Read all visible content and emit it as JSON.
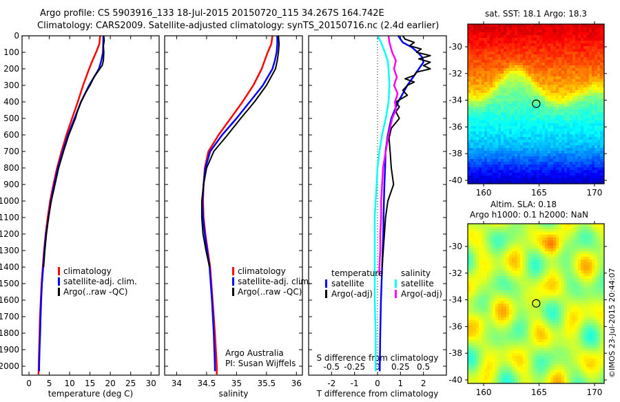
{
  "title_line1": "Argo profile: CS 5903916_133 18-Jul-2015 20150720_115 34.267S 164.742E",
  "title_line2": "Climatology: CARS2009. Satellite-adjusted climatology: synTS_20150716.nc (2.4d earlier)",
  "credit": "©IMOS 23-Jul-2015 20:44:07",
  "colors": {
    "climatology": "#ff0000",
    "satellite": "#0000ff",
    "argo": "#000000",
    "s_satellite": "#00ffff",
    "s_argo": "#ff00ff"
  },
  "chart_data": [
    {
      "type": "line",
      "id": "temperature",
      "xlabel": "temperature (deg C)",
      "ylabel": "depth",
      "xlim": [
        -1.7,
        32
      ],
      "ylim": [
        2054,
        0
      ],
      "xticks": [
        0,
        5,
        10,
        15,
        20,
        25,
        30
      ],
      "xtick_labels": [
        "0",
        "5",
        "10",
        "15",
        "20",
        "25",
        "30"
      ],
      "yticks": [
        0,
        100,
        200,
        300,
        400,
        500,
        600,
        700,
        800,
        900,
        1000,
        1100,
        1200,
        1300,
        1400,
        1500,
        1600,
        1700,
        1800,
        1900,
        2000
      ],
      "ytick_labels": [
        "0",
        "100",
        "200",
        "300",
        "400",
        "500",
        "600",
        "700",
        "800",
        "900",
        "1000",
        "1100",
        "1200",
        "1300",
        "1400",
        "1500",
        "1600",
        "1700",
        "1800",
        "1900",
        "2000"
      ],
      "legend": [
        "climatology",
        "satellite-adj. clim.",
        "Argo(..raw -QC)"
      ],
      "legend_position": "lower-center",
      "series": [
        {
          "name": "climatology",
          "color": "#ff0000",
          "depth": [
            0,
            50,
            100,
            150,
            200,
            300,
            400,
            500,
            600,
            700,
            800,
            900,
            1000,
            1100,
            1200,
            1300,
            1400,
            1500,
            1600,
            1700,
            1800,
            1900,
            2000,
            2050
          ],
          "values": [
            17.5,
            17.3,
            16.5,
            15.6,
            14.8,
            13.3,
            12.0,
            10.6,
            9.2,
            8.0,
            6.9,
            6.0,
            5.2,
            4.6,
            4.1,
            3.7,
            3.4,
            3.1,
            2.9,
            2.7,
            2.6,
            2.5,
            2.4,
            2.35
          ]
        },
        {
          "name": "satellite-adj. clim.",
          "color": "#0000ff",
          "depth": [
            0,
            100,
            150,
            200,
            300,
            400,
            500,
            600,
            700,
            800,
            900,
            1000,
            1100,
            1200,
            1300,
            1400,
            1500,
            1600,
            1700,
            1800,
            1900,
            2000,
            2030
          ],
          "values": [
            18.3,
            18.2,
            17.8,
            17.2,
            14.8,
            12.8,
            11.2,
            9.6,
            8.3,
            7.1,
            6.2,
            5.4,
            4.8,
            4.2,
            3.8,
            3.5,
            3.2,
            3.0,
            2.85,
            2.75,
            2.6,
            2.5,
            2.5
          ]
        },
        {
          "name": "Argo(..raw -QC)",
          "color": "#000000",
          "depth": [
            0,
            30,
            60,
            100,
            150,
            180,
            200,
            250,
            300,
            350,
            400,
            450,
            500,
            600,
            700,
            800,
            900,
            1000,
            1100,
            1200,
            1300,
            1400
          ],
          "values": [
            18.4,
            18.5,
            18.3,
            18.4,
            18.3,
            18.0,
            17.4,
            16.0,
            15.0,
            13.8,
            12.8,
            12.0,
            11.4,
            9.8,
            8.5,
            7.3,
            6.4,
            5.5,
            4.8,
            4.3,
            3.9,
            3.6
          ]
        }
      ]
    },
    {
      "type": "line",
      "id": "salinity",
      "xlabel": "salinity",
      "xlim": [
        33.8,
        36.1
      ],
      "ylim": [
        2054,
        0
      ],
      "xticks": [
        34,
        34.5,
        35,
        35.5,
        36
      ],
      "xtick_labels": [
        "34",
        "34.5",
        "35",
        "35.5",
        "36"
      ],
      "legend": [
        "climatology",
        "satellite-adj. clim.",
        "Argo(..raw -QC)"
      ],
      "legend_position": "lower-center",
      "annotation": [
        "Argo Australia",
        "PI: Susan Wijffels"
      ],
      "series": [
        {
          "name": "climatology",
          "color": "#ff0000",
          "depth": [
            0,
            50,
            100,
            150,
            200,
            300,
            400,
            500,
            600,
            700,
            800,
            900,
            1000,
            1100,
            1200,
            1300,
            1400,
            1600,
            1800,
            2000,
            2050
          ],
          "values": [
            35.6,
            35.58,
            35.52,
            35.47,
            35.42,
            35.28,
            35.1,
            34.9,
            34.7,
            34.53,
            34.47,
            34.45,
            34.44,
            34.45,
            34.48,
            34.52,
            34.56,
            34.6,
            34.64,
            34.67,
            34.67
          ]
        },
        {
          "name": "satellite-adj. clim.",
          "color": "#0000ff",
          "depth": [
            0,
            50,
            100,
            150,
            200,
            300,
            400,
            500,
            600,
            700,
            800,
            900,
            1000,
            1100,
            1200,
            1300,
            1400,
            1600,
            1800,
            2000,
            2030
          ],
          "values": [
            35.68,
            35.68,
            35.67,
            35.64,
            35.6,
            35.44,
            35.22,
            35.0,
            34.76,
            34.56,
            34.48,
            34.45,
            34.43,
            34.44,
            34.47,
            34.51,
            34.55,
            34.59,
            34.62,
            34.64,
            34.64
          ]
        },
        {
          "name": "Argo(..raw -QC)",
          "color": "#000000",
          "depth": [
            0,
            50,
            100,
            150,
            200,
            300,
            400,
            500,
            600,
            700,
            800,
            900,
            1000,
            1100,
            1200,
            1300,
            1400
          ],
          "values": [
            35.7,
            35.71,
            35.7,
            35.68,
            35.65,
            35.5,
            35.3,
            35.07,
            34.85,
            34.62,
            34.5,
            34.45,
            34.42,
            34.42,
            34.44,
            34.49,
            34.55
          ]
        }
      ]
    },
    {
      "type": "line",
      "id": "differences",
      "xlabel": "T difference from climatology",
      "xlabel2": "S difference from climatology",
      "xlim": [
        -3,
        3
      ],
      "x2lim": [
        -0.75,
        0.75
      ],
      "ylim": [
        2054,
        0
      ],
      "xticks": [
        -2,
        -1,
        0,
        1,
        2
      ],
      "xtick_labels": [
        "-2",
        "-1",
        "0",
        "1",
        "2"
      ],
      "x2ticks": [
        -0.5,
        -0.25,
        0,
        0.25,
        0.5
      ],
      "x2tick_labels": [
        "-0.5",
        "-0.25",
        "0",
        "0.25",
        "0.5"
      ],
      "legend_temperature_title": "temperature",
      "legend_temperature": [
        "satellite",
        "Argo(-adj)"
      ],
      "legend_salinity_title": "salinity",
      "legend_salinity": [
        "satellite",
        "Argo(-adj)"
      ],
      "series": [
        {
          "name": "T satellite",
          "axis": "T",
          "color": "#0000ff",
          "depth": [
            0,
            40,
            70,
            100,
            130,
            160,
            200,
            250,
            300,
            350,
            400,
            500,
            600,
            700,
            800,
            900,
            1000,
            1200,
            1400,
            1600,
            1800,
            2000,
            2030
          ],
          "values": [
            0.9,
            1.1,
            1.5,
            1.75,
            1.95,
            2.0,
            1.8,
            1.55,
            1.3,
            1.1,
            0.9,
            0.6,
            0.45,
            0.35,
            0.33,
            0.3,
            0.28,
            0.25,
            0.2,
            0.15,
            0.12,
            0.1,
            0.1
          ]
        },
        {
          "name": "T Argo(-adj)",
          "axis": "T",
          "color": "#000000",
          "depth": [
            0,
            20,
            40,
            60,
            80,
            100,
            120,
            140,
            160,
            180,
            200,
            220,
            240,
            260,
            280,
            300,
            330,
            360,
            400,
            430,
            460,
            500,
            560,
            620,
            700,
            800,
            900,
            1000,
            1100,
            1200,
            1300,
            1400
          ],
          "values": [
            1.1,
            1.2,
            1.6,
            1.4,
            1.9,
            1.7,
            2.3,
            1.8,
            2.3,
            2.0,
            2.3,
            1.7,
            1.6,
            1.2,
            1.6,
            1.3,
            1.1,
            1.3,
            0.8,
            0.95,
            0.8,
            0.95,
            0.6,
            0.5,
            0.55,
            0.6,
            0.7,
            0.45,
            0.35,
            0.3,
            0.25,
            0.2
          ]
        },
        {
          "name": "S satellite",
          "axis": "S",
          "color": "#00ffff",
          "depth": [
            0,
            40,
            100,
            150,
            200,
            300,
            400,
            500,
            600,
            700,
            800,
            900,
            1000,
            1100,
            1200,
            1400,
            1600,
            1800,
            2000,
            2030
          ],
          "values": [
            0,
            0.04,
            0.08,
            0.11,
            0.12,
            0.13,
            0.12,
            0.09,
            0.05,
            0.02,
            0.0,
            -0.01,
            -0.02,
            -0.03,
            -0.03,
            -0.03,
            -0.03,
            -0.02,
            -0.02,
            -0.02
          ]
        },
        {
          "name": "S Argo(-adj)",
          "axis": "S",
          "color": "#ff00ff",
          "depth": [
            0,
            40,
            100,
            150,
            200,
            250,
            300,
            350,
            400,
            450,
            500,
            600,
            700,
            800,
            900,
            1000,
            1100,
            1200,
            1300,
            1400,
            1450
          ],
          "values": [
            0.12,
            0.13,
            0.16,
            0.2,
            0.18,
            0.21,
            0.18,
            0.22,
            0.19,
            0.2,
            0.16,
            0.12,
            0.09,
            0.06,
            0.05,
            0.04,
            0.04,
            0.03,
            0.03,
            0.02,
            0.02
          ]
        }
      ]
    }
  ],
  "maps": [
    {
      "id": "sst",
      "title": "sat. SST: 18.1 Argo: 18.3",
      "lon_range": [
        158.57,
        170.87
      ],
      "lat_range": [
        -40.26,
        -28.3
      ],
      "lon_ticks": [
        160,
        165,
        170
      ],
      "lon_tick_labels": [
        "160",
        "165",
        "170"
      ],
      "lat_ticks": [
        -30,
        -32,
        -34,
        -36,
        -38,
        -40
      ],
      "lat_tick_labels": [
        "-30",
        "-32",
        "-34",
        "-36",
        "-38",
        "-40"
      ],
      "marker": {
        "lon": 164.742,
        "lat": -34.267
      }
    },
    {
      "id": "sla",
      "title": "Altim. SLA: 0.18",
      "subtitle": "Argo h1000: 0.1 h2000: NaN",
      "lon_range": [
        158.57,
        170.87
      ],
      "lat_range": [
        -40.26,
        -28.3
      ],
      "lon_ticks": [
        160,
        165,
        170
      ],
      "lon_tick_labels": [
        "160",
        "165",
        "170"
      ],
      "lat_ticks": [
        -30,
        -32,
        -34,
        -36,
        -38,
        -40
      ],
      "lat_tick_labels": [
        "-30",
        "-32",
        "-34",
        "-36",
        "-38",
        "-40"
      ],
      "marker": {
        "lon": 164.742,
        "lat": -34.267
      }
    }
  ]
}
